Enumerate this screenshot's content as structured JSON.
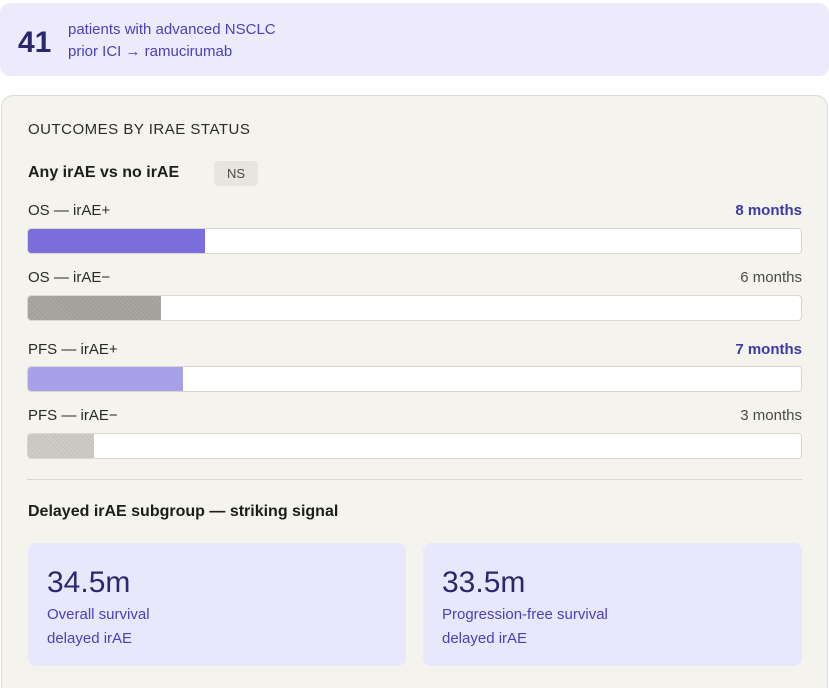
{
  "header": {
    "count": "41",
    "line1": "patients with advanced NSCLC",
    "line2": "prior ICI → ramucirumab"
  },
  "panel": {
    "title": "OUTCOMES BY IRAE STATUS",
    "subtitle": "Any irAE vs no irAE",
    "badge": "NS"
  },
  "chart_data": {
    "type": "bar",
    "orientation": "horizontal",
    "categories": [
      "OS — irAE+",
      "OS — irAE−",
      "PFS — irAE+",
      "PFS — irAE−"
    ],
    "values": [
      8,
      6,
      7,
      3
    ],
    "value_labels": [
      "8 months",
      "6 months",
      "7 months",
      "3 months"
    ],
    "unit": "months",
    "xlim": [
      0,
      35
    ],
    "colors": [
      "#7b6ddc",
      "#a8a6a0",
      "#a9a0ea",
      "#cfccc5"
    ],
    "highlighted": [
      true,
      false,
      true,
      false
    ]
  },
  "delayed": {
    "title": "Delayed irAE subgroup — striking signal",
    "cards": [
      {
        "value": "34.5m",
        "line1": "Overall survival",
        "line2": "delayed irAE"
      },
      {
        "value": "33.5m",
        "line1": "Progression-free survival",
        "line2": "delayed irAE"
      }
    ]
  }
}
